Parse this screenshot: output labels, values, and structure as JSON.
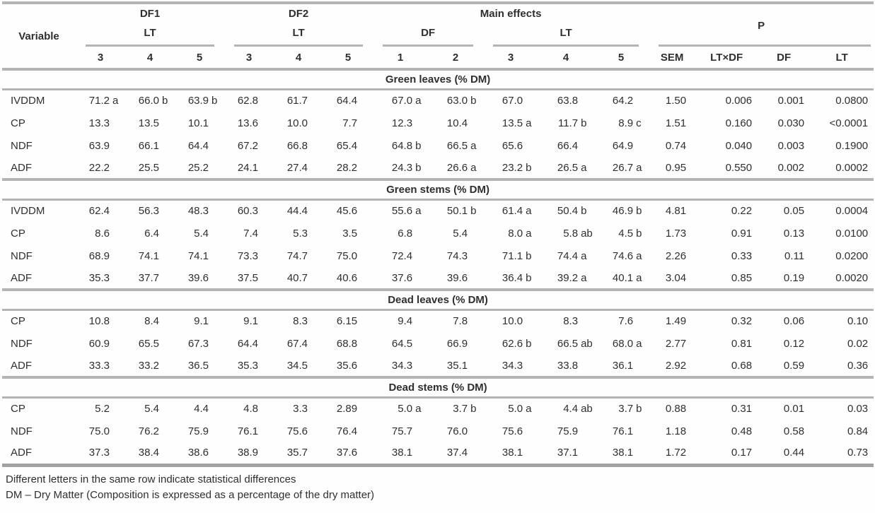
{
  "table": {
    "header": {
      "variable": "Variable",
      "group_df1": "DF1",
      "group_df2": "DF2",
      "group_main": "Main effects",
      "group_p": "P",
      "sub_lt_df1": "LT",
      "sub_lt_df2": "LT",
      "sub_df_main": "DF",
      "sub_lt_main": "LT",
      "df1_cols": [
        "3",
        "4",
        "5"
      ],
      "df2_cols": [
        "3",
        "4",
        "5"
      ],
      "main_df_cols": [
        "1",
        "2"
      ],
      "main_lt_cols": [
        "3",
        "4",
        "5"
      ],
      "p_cols": [
        "SEM",
        "LT×DF",
        "DF",
        "LT"
      ]
    },
    "sections": [
      {
        "title": "Green leaves (% DM)",
        "rows": [
          {
            "variable": "IVDDM",
            "cells": [
              [
                "71.2",
                "a"
              ],
              [
                "66.0",
                "b"
              ],
              [
                "63.9",
                "b"
              ],
              [
                "62.8",
                ""
              ],
              [
                "61.7",
                ""
              ],
              [
                "64.4",
                ""
              ],
              [
                "67.0",
                "a"
              ],
              [
                "63.0",
                "b"
              ],
              [
                "67.0",
                ""
              ],
              [
                "63.8",
                ""
              ],
              [
                "64.2",
                ""
              ]
            ],
            "stats": [
              "1.50",
              "0.006",
              "0.001",
              "0.0800"
            ]
          },
          {
            "variable": "CP",
            "cells": [
              [
                "13.3",
                ""
              ],
              [
                "13.5",
                ""
              ],
              [
                "10.1",
                ""
              ],
              [
                "13.6",
                ""
              ],
              [
                "10.0",
                ""
              ],
              [
                "7.7",
                ""
              ],
              [
                "12.3",
                ""
              ],
              [
                "10.4",
                ""
              ],
              [
                "13.5",
                "a"
              ],
              [
                "11.7",
                "b"
              ],
              [
                "8.9",
                "c"
              ]
            ],
            "stats": [
              "1.51",
              "0.160",
              "0.030",
              "<0.0001"
            ]
          },
          {
            "variable": "NDF",
            "cells": [
              [
                "63.9",
                ""
              ],
              [
                "66.1",
                ""
              ],
              [
                "64.4",
                ""
              ],
              [
                "67.2",
                ""
              ],
              [
                "66.8",
                ""
              ],
              [
                "65.4",
                ""
              ],
              [
                "64.8",
                "b"
              ],
              [
                "66.5",
                "a"
              ],
              [
                "65.6",
                ""
              ],
              [
                "66.4",
                ""
              ],
              [
                "64.9",
                ""
              ]
            ],
            "stats": [
              "0.74",
              "0.040",
              "0.003",
              "0.1900"
            ]
          },
          {
            "variable": "ADF",
            "cells": [
              [
                "22.2",
                ""
              ],
              [
                "25.5",
                ""
              ],
              [
                "25.2",
                ""
              ],
              [
                "24.1",
                ""
              ],
              [
                "27.4",
                ""
              ],
              [
                "28.2",
                ""
              ],
              [
                "24.3",
                "b"
              ],
              [
                "26.6",
                "a"
              ],
              [
                "23.2",
                "b"
              ],
              [
                "26.5",
                "a"
              ],
              [
                "26.7",
                "a"
              ]
            ],
            "stats": [
              "0.95",
              "0.550",
              "0.002",
              "0.0002"
            ]
          }
        ]
      },
      {
        "title": "Green stems (% DM)",
        "rows": [
          {
            "variable": "IVDDM",
            "cells": [
              [
                "62.4",
                ""
              ],
              [
                "56.3",
                ""
              ],
              [
                "48.3",
                ""
              ],
              [
                "60.3",
                ""
              ],
              [
                "44.4",
                ""
              ],
              [
                "45.6",
                ""
              ],
              [
                "55.6",
                "a"
              ],
              [
                "50.1",
                "b"
              ],
              [
                "61.4",
                "a"
              ],
              [
                "50.4",
                "b"
              ],
              [
                "46.9",
                "b"
              ]
            ],
            "stats": [
              "4.81",
              "0.22",
              "0.05",
              "0.0004"
            ]
          },
          {
            "variable": "CP",
            "cells": [
              [
                "8.6",
                ""
              ],
              [
                "6.4",
                ""
              ],
              [
                "5.4",
                ""
              ],
              [
                "7.4",
                ""
              ],
              [
                "5.3",
                ""
              ],
              [
                "3.5",
                ""
              ],
              [
                "6.8",
                ""
              ],
              [
                "5.4",
                ""
              ],
              [
                "8.0",
                "a"
              ],
              [
                "5.8",
                "ab"
              ],
              [
                "4.5",
                "b"
              ]
            ],
            "stats": [
              "1.73",
              "0.91",
              "0.13",
              "0.0100"
            ]
          },
          {
            "variable": "NDF",
            "cells": [
              [
                "68.9",
                ""
              ],
              [
                "74.1",
                ""
              ],
              [
                "74.1",
                ""
              ],
              [
                "73.3",
                ""
              ],
              [
                "74.7",
                ""
              ],
              [
                "75.0",
                ""
              ],
              [
                "72.4",
                ""
              ],
              [
                "74.3",
                ""
              ],
              [
                "71.1",
                "b"
              ],
              [
                "74.4",
                "a"
              ],
              [
                "74.6",
                "a"
              ]
            ],
            "stats": [
              "2.26",
              "0.33",
              "0.11",
              "0.0200"
            ]
          },
          {
            "variable": "ADF",
            "cells": [
              [
                "35.3",
                ""
              ],
              [
                "37.7",
                ""
              ],
              [
                "39.6",
                ""
              ],
              [
                "37.5",
                ""
              ],
              [
                "40.7",
                ""
              ],
              [
                "40.6",
                ""
              ],
              [
                "37.6",
                ""
              ],
              [
                "39.6",
                ""
              ],
              [
                "36.4",
                "b"
              ],
              [
                "39.2",
                "a"
              ],
              [
                "40.1",
                "a"
              ]
            ],
            "stats": [
              "3.04",
              "0.85",
              "0.19",
              "0.0020"
            ]
          }
        ]
      },
      {
        "title": "Dead leaves (% DM)",
        "rows": [
          {
            "variable": "CP",
            "cells": [
              [
                "10.8",
                ""
              ],
              [
                "8.4",
                ""
              ],
              [
                "9.1",
                ""
              ],
              [
                "9.1",
                ""
              ],
              [
                "8.3",
                ""
              ],
              [
                "6.15",
                ""
              ],
              [
                "9.4",
                ""
              ],
              [
                "7.8",
                ""
              ],
              [
                "10.0",
                ""
              ],
              [
                "8.3",
                ""
              ],
              [
                "7.6",
                ""
              ]
            ],
            "stats": [
              "1.49",
              "0.32",
              "0.06",
              "0.10"
            ]
          },
          {
            "variable": "NDF",
            "cells": [
              [
                "60.9",
                ""
              ],
              [
                "65.5",
                ""
              ],
              [
                "67.3",
                ""
              ],
              [
                "64.4",
                ""
              ],
              [
                "67.4",
                ""
              ],
              [
                "68.8",
                ""
              ],
              [
                "64.5",
                ""
              ],
              [
                "66.9",
                ""
              ],
              [
                "62.6",
                "b"
              ],
              [
                "66.5",
                "ab"
              ],
              [
                "68.0",
                "a"
              ]
            ],
            "stats": [
              "2.77",
              "0.81",
              "0.12",
              "0.02"
            ]
          },
          {
            "variable": "ADF",
            "cells": [
              [
                "33.3",
                ""
              ],
              [
                "33.2",
                ""
              ],
              [
                "36.5",
                ""
              ],
              [
                "35.3",
                ""
              ],
              [
                "34.5",
                ""
              ],
              [
                "35.6",
                ""
              ],
              [
                "34.3",
                ""
              ],
              [
                "35.1",
                ""
              ],
              [
                "34.3",
                ""
              ],
              [
                "33.8",
                ""
              ],
              [
                "36.1",
                ""
              ]
            ],
            "stats": [
              "2.92",
              "0.68",
              "0.59",
              "0.36"
            ]
          }
        ]
      },
      {
        "title": "Dead stems (% DM)",
        "rows": [
          {
            "variable": "CP",
            "cells": [
              [
                "5.2",
                ""
              ],
              [
                "5.4",
                ""
              ],
              [
                "4.4",
                ""
              ],
              [
                "4.8",
                ""
              ],
              [
                "3.3",
                ""
              ],
              [
                "2.89",
                ""
              ],
              [
                "5.0",
                "a"
              ],
              [
                "3.7",
                "b"
              ],
              [
                "5.0",
                "a"
              ],
              [
                "4.4",
                "ab"
              ],
              [
                "3.7",
                "b"
              ]
            ],
            "stats": [
              "0.88",
              "0.31",
              "0.01",
              "0.03"
            ]
          },
          {
            "variable": "NDF",
            "cells": [
              [
                "75.0",
                ""
              ],
              [
                "76.2",
                ""
              ],
              [
                "75.9",
                ""
              ],
              [
                "76.1",
                ""
              ],
              [
                "75.6",
                ""
              ],
              [
                "76.4",
                ""
              ],
              [
                "75.7",
                ""
              ],
              [
                "76.0",
                ""
              ],
              [
                "75.6",
                ""
              ],
              [
                "75.9",
                ""
              ],
              [
                "76.1",
                ""
              ]
            ],
            "stats": [
              "1.18",
              "0.48",
              "0.58",
              "0.84"
            ]
          },
          {
            "variable": "ADF",
            "cells": [
              [
                "37.3",
                ""
              ],
              [
                "38.4",
                ""
              ],
              [
                "38.6",
                ""
              ],
              [
                "38.9",
                ""
              ],
              [
                "35.7",
                ""
              ],
              [
                "37.6",
                ""
              ],
              [
                "38.1",
                ""
              ],
              [
                "37.4",
                ""
              ],
              [
                "38.1",
                ""
              ],
              [
                "37.1",
                ""
              ],
              [
                "38.1",
                ""
              ]
            ],
            "stats": [
              "1.72",
              "0.17",
              "0.44",
              "0.73"
            ]
          }
        ]
      }
    ],
    "footnotes": [
      "Different letters in the same row indicate statistical differences",
      "DM – Dry Matter (Composition is expressed as a percentage of the dry matter)"
    ]
  },
  "colors": {
    "rule": "#b4b4b4",
    "rule_dark": "#a2a2a2",
    "text": "#2f2f2f"
  }
}
